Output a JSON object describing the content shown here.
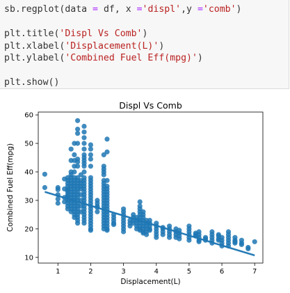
{
  "code_cell": {
    "line1": {
      "a": "sb.regplot(data ",
      "eq1": "=",
      "b": " df, x ",
      "eq2": "=",
      "s1": "'displ'",
      "c": ",y ",
      "eq3": "=",
      "s2": "'comb'",
      "d": ")"
    },
    "line2": {
      "a": "plt.title(",
      "s": "'Displ Vs Comb'",
      "b": ")"
    },
    "line3": {
      "a": "plt.xlabel(",
      "s": "'Displacement(L)'",
      "b": ")"
    },
    "line4": {
      "a": "plt.ylabel(",
      "s": "'Combined Fuel Eff(mpg)'",
      "b": ")"
    },
    "line5": "plt.show()"
  },
  "colors": {
    "points": "#1f77b4",
    "regression": "#1f77b4",
    "cell_bg": "#f7f7f7",
    "string": "#ba2121",
    "operator": "#aa22ff"
  },
  "chart_data": {
    "type": "scatter",
    "title": "Displ Vs Comb",
    "xlabel": "Displacement(L)",
    "ylabel": "Combined Fuel Eff(mpg)",
    "xlim": [
      0.4,
      7.25
    ],
    "ylim": [
      8,
      61
    ],
    "xticks": [
      1,
      2,
      3,
      4,
      5,
      6,
      7
    ],
    "yticks": [
      10,
      20,
      30,
      40,
      50,
      60
    ],
    "regression_line": {
      "x": [
        0.6,
        7.0
      ],
      "y": [
        33.0,
        10.7
      ]
    },
    "columns": [
      {
        "x": 0.6,
        "ys": [
          39.2,
          34.5
        ]
      },
      {
        "x": 1.0,
        "ys": [
          34.5,
          33.8,
          32.0,
          30.5,
          29.0
        ]
      },
      {
        "x": 1.2,
        "ys": [
          37.5,
          34.0,
          31.0,
          29.5
        ]
      },
      {
        "x": 1.3,
        "ys": [
          38,
          37,
          36,
          35,
          34,
          33.5,
          33,
          32,
          31.5,
          31,
          30.5,
          30,
          29,
          28,
          27
        ]
      },
      {
        "x": 1.4,
        "ys": [
          48,
          44,
          40,
          39,
          38,
          37,
          36,
          35,
          34,
          33,
          32,
          31,
          30,
          29,
          28,
          27,
          26
        ]
      },
      {
        "x": 1.5,
        "ys": [
          50,
          46,
          44,
          42,
          40,
          38,
          37,
          36,
          35,
          34,
          33,
          32,
          31,
          30,
          29,
          28,
          27,
          26,
          25,
          24
        ]
      },
      {
        "x": 1.6,
        "ys": [
          58,
          55,
          53.5,
          50,
          44.5,
          43.5,
          42,
          38,
          37,
          36,
          35,
          34,
          33,
          32,
          31,
          30,
          29,
          28,
          27,
          26,
          25,
          24,
          23,
          22
        ]
      },
      {
        "x": 1.7,
        "ys": [
          39,
          37,
          36,
          35,
          34,
          32,
          30,
          28,
          26
        ]
      },
      {
        "x": 1.8,
        "ys": [
          56,
          54,
          52,
          50,
          48,
          46,
          45,
          44,
          43,
          42,
          40,
          38,
          37,
          36,
          35,
          34,
          33,
          32,
          31,
          30,
          29,
          28,
          27,
          26,
          25,
          24,
          23,
          22
        ]
      },
      {
        "x": 2.0,
        "ys": [
          49.5,
          48,
          46,
          44.5,
          42,
          38,
          37,
          36,
          35,
          34,
          33,
          32,
          31,
          30,
          29,
          28,
          27,
          26,
          25,
          24,
          23,
          22,
          21,
          20,
          19.5
        ]
      },
      {
        "x": 2.2,
        "ys": [
          30,
          29,
          28,
          27.5,
          26
        ]
      },
      {
        "x": 2.4,
        "ys": [
          46,
          42,
          41,
          40,
          39,
          37,
          36,
          35,
          34,
          33,
          32,
          31,
          30,
          29,
          28,
          27,
          26,
          25,
          24,
          23,
          22,
          21,
          20
        ]
      },
      {
        "x": 2.5,
        "ys": [
          51.5,
          47,
          37,
          35,
          34,
          33,
          32,
          31,
          30,
          29,
          28,
          27,
          26,
          25,
          24,
          23,
          22,
          21,
          20,
          19.5
        ]
      },
      {
        "x": 2.7,
        "ys": [
          25,
          24,
          23,
          22,
          21.5
        ]
      },
      {
        "x": 3.0,
        "ys": [
          27,
          26,
          25,
          24,
          23,
          22,
          21,
          20,
          19
        ]
      },
      {
        "x": 3.2,
        "ys": [
          23,
          22,
          21
        ]
      },
      {
        "x": 3.3,
        "ys": [
          25,
          24,
          23,
          22
        ]
      },
      {
        "x": 3.4,
        "ys": [
          24,
          23,
          22,
          21,
          20
        ]
      },
      {
        "x": 3.5,
        "ys": [
          29.5,
          28,
          27,
          26,
          25,
          24,
          23,
          22,
          21,
          20,
          19.5
        ]
      },
      {
        "x": 3.6,
        "ys": [
          26,
          25,
          24,
          23,
          22,
          21,
          20,
          19,
          18.5
        ]
      },
      {
        "x": 3.7,
        "ys": [
          23,
          22,
          21,
          20,
          19,
          18
        ]
      },
      {
        "x": 3.8,
        "ys": [
          23,
          22,
          21,
          20,
          19.5
        ]
      },
      {
        "x": 4.0,
        "ys": [
          22,
          21,
          20,
          19,
          18,
          17
        ]
      },
      {
        "x": 4.2,
        "ys": [
          20.5,
          20,
          19,
          18
        ]
      },
      {
        "x": 4.4,
        "ys": [
          21,
          20,
          19,
          18,
          17
        ]
      },
      {
        "x": 4.6,
        "ys": [
          20,
          19,
          18,
          17
        ]
      },
      {
        "x": 4.7,
        "ys": [
          19.5,
          18.5,
          17.5,
          16.5
        ]
      },
      {
        "x": 5.0,
        "ys": [
          21,
          20,
          19,
          18,
          17,
          16
        ]
      },
      {
        "x": 5.2,
        "ys": [
          18.5,
          18,
          17.5
        ]
      },
      {
        "x": 5.3,
        "ys": [
          19,
          18,
          17,
          16,
          15.5
        ]
      },
      {
        "x": 5.5,
        "ys": [
          17,
          16.5,
          16
        ]
      },
      {
        "x": 5.7,
        "ys": [
          19,
          18,
          17,
          16,
          15
        ]
      },
      {
        "x": 5.9,
        "ys": [
          18,
          17.5,
          16.5,
          16
        ]
      },
      {
        "x": 6.0,
        "ys": [
          17,
          16,
          15,
          14
        ]
      },
      {
        "x": 6.2,
        "ys": [
          19,
          18,
          17,
          16,
          15,
          14
        ]
      },
      {
        "x": 6.4,
        "ys": [
          17,
          16,
          15.5,
          15
        ]
      },
      {
        "x": 6.6,
        "ys": [
          16,
          15,
          14.5
        ]
      },
      {
        "x": 6.8,
        "ys": [
          13.5,
          13
        ]
      },
      {
        "x": 7.0,
        "ys": [
          15.5
        ]
      }
    ]
  }
}
